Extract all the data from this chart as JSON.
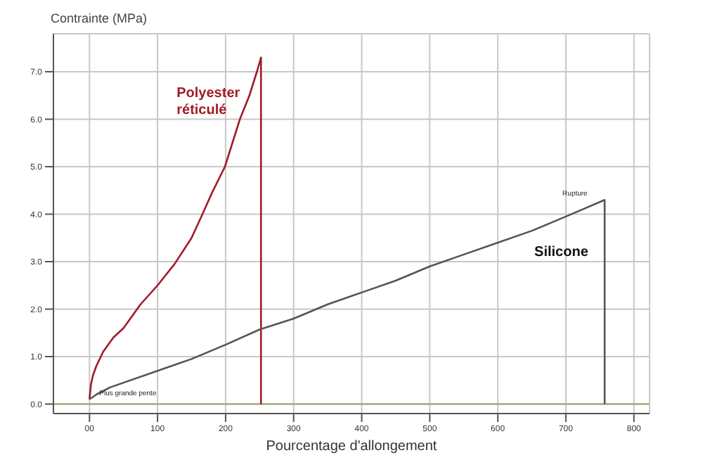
{
  "chart_data": {
    "type": "line",
    "ylabel": "Contrainte (MPa)",
    "xlabel": "Pourcentage d'allongement",
    "xlim": [
      -53,
      823
    ],
    "xticks": [
      {
        "value": 0,
        "label": "00"
      },
      100,
      200,
      300,
      400,
      500,
      600,
      700,
      800
    ],
    "ylim": [
      -0.2,
      7.8
    ],
    "yticks": [
      {
        "value": 0,
        "label": "0.0"
      },
      {
        "value": 1,
        "label": "1.0"
      },
      {
        "value": 2,
        "label": "2.0"
      },
      {
        "value": 3,
        "label": "3.0"
      },
      {
        "value": 4,
        "label": "4.0"
      },
      {
        "value": 5,
        "label": "5.0"
      },
      {
        "value": 6,
        "label": "6.0"
      },
      {
        "value": 7,
        "label": "7.0"
      }
    ],
    "grid": true,
    "legend": false,
    "marker": "none",
    "line_style": "solid",
    "series": [
      {
        "name": "Polyester réticulé",
        "color": "#a01c28",
        "x": [
          0,
          2,
          5,
          10,
          20,
          35,
          50,
          75,
          100,
          125,
          150,
          166,
          180,
          199,
          210,
          221,
          235,
          246,
          252,
          252
        ],
        "values": [
          0.1,
          0.4,
          0.6,
          0.8,
          1.1,
          1.4,
          1.6,
          2.1,
          2.5,
          2.95,
          3.5,
          4.0,
          4.45,
          5.0,
          5.5,
          6.0,
          6.5,
          7.0,
          7.3,
          0
        ]
      },
      {
        "name": "Silicone",
        "color": "#555555",
        "x": [
          0,
          10,
          30,
          100,
          150,
          200,
          250,
          300,
          350,
          400,
          450,
          500,
          550,
          600,
          650,
          700,
          757,
          757
        ],
        "values": [
          0.1,
          0.2,
          0.35,
          0.7,
          0.95,
          1.25,
          1.57,
          1.8,
          2.1,
          2.35,
          2.6,
          2.9,
          3.15,
          3.4,
          3.65,
          3.95,
          4.3,
          0
        ]
      }
    ],
    "ref_lines": [
      {
        "axis": "y",
        "value": 0,
        "color": "#a0a060",
        "line_style": "solid"
      }
    ],
    "annotations": [
      {
        "text": "Rupture",
        "x": 757,
        "y": 4.3
      },
      {
        "text": "Plus grande pente",
        "x": 0,
        "y": 0.1
      }
    ]
  }
}
